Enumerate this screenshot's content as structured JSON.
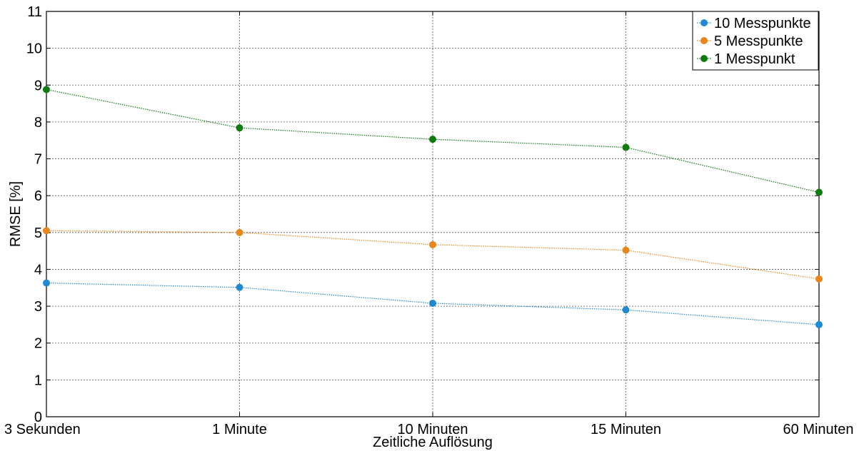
{
  "chart_data": {
    "type": "line",
    "categories": [
      "3 Sekunden",
      "1 Minute",
      "10 Minuten",
      "15 Minuten",
      "60 Minuten"
    ],
    "xlabel": "Zeitliche Auflösung",
    "ylabel": "RMSE [%]",
    "ylim": [
      0,
      11
    ],
    "yticks": [
      0,
      1,
      2,
      3,
      4,
      5,
      6,
      7,
      8,
      9,
      10,
      11
    ],
    "grid": true,
    "legend_position": "top-right",
    "series": [
      {
        "name": "10 Messpunkte",
        "color": "#1f8ad2",
        "values": [
          3.63,
          3.51,
          3.08,
          2.9,
          2.5
        ]
      },
      {
        "name": "5 Messpunkte",
        "color": "#e8861a",
        "values": [
          5.05,
          5.0,
          4.67,
          4.52,
          3.74
        ]
      },
      {
        "name": "1 Messpunkt",
        "color": "#0f7a0f",
        "values": [
          8.88,
          7.84,
          7.53,
          7.31,
          6.09
        ]
      }
    ]
  }
}
